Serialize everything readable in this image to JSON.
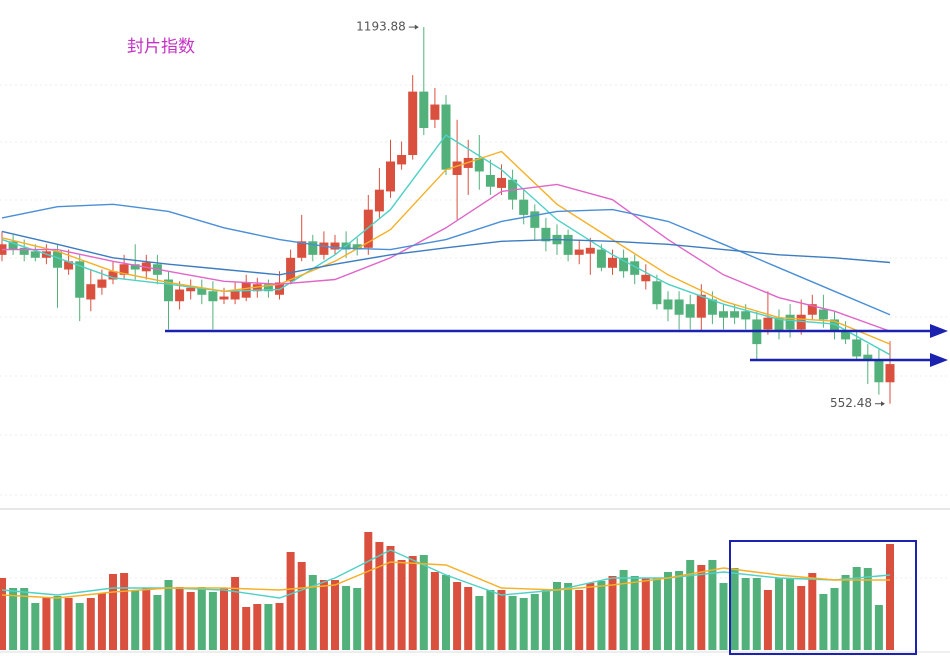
{
  "chart_data": {
    "type": "candlestick",
    "title": "封片指数",
    "open": [
      806,
      829,
      818,
      812,
      801,
      812,
      781,
      795,
      730,
      750,
      764,
      772,
      790,
      778,
      790,
      764,
      727,
      744,
      750,
      744,
      730,
      730,
      733,
      744,
      756,
      738,
      761,
      801,
      829,
      806,
      815,
      827,
      824,
      818,
      880,
      914,
      960,
      976,
      1084,
      1036,
      1062,
      942,
      954,
      971,
      942,
      920,
      934,
      900,
      880,
      852,
      840,
      840,
      806,
      808,
      815,
      784,
      801,
      795,
      761,
      761,
      730,
      730,
      722,
      699,
      730,
      710,
      710,
      710,
      696,
      679,
      699,
      704,
      679,
      704,
      713,
      696,
      676,
      662,
      636,
      628,
      589
    ],
    "close": [
      824,
      815,
      806,
      801,
      812,
      784,
      795,
      733,
      756,
      764,
      778,
      790,
      781,
      793,
      772,
      727,
      747,
      750,
      738,
      727,
      735,
      744,
      759,
      756,
      744,
      759,
      801,
      829,
      806,
      827,
      827,
      815,
      815,
      883,
      917,
      965,
      976,
      1084,
      1022,
      1062,
      951,
      965,
      971,
      948,
      922,
      937,
      900,
      874,
      852,
      829,
      824,
      806,
      815,
      818,
      784,
      801,
      778,
      772,
      772,
      722,
      713,
      704,
      699,
      738,
      704,
      699,
      699,
      696,
      654,
      699,
      676,
      679,
      704,
      722,
      696,
      676,
      662,
      633,
      628,
      589,
      620
    ],
    "low": [
      795,
      806,
      795,
      795,
      790,
      716,
      772,
      693,
      710,
      738,
      756,
      764,
      764,
      764,
      756,
      679,
      713,
      730,
      722,
      679,
      722,
      722,
      727,
      733,
      733,
      730,
      756,
      795,
      795,
      798,
      806,
      801,
      805,
      806,
      869,
      903,
      951,
      968,
      1010,
      1022,
      942,
      866,
      908,
      917,
      908,
      908,
      883,
      858,
      832,
      812,
      806,
      795,
      790,
      772,
      778,
      772,
      767,
      756,
      747,
      713,
      693,
      679,
      679,
      676,
      688,
      679,
      688,
      679,
      628,
      670,
      662,
      665,
      670,
      696,
      682,
      662,
      654,
      625,
      586,
      568,
      552.48
    ],
    "high": [
      846,
      840,
      832,
      824,
      824,
      824,
      815,
      806,
      781,
      781,
      795,
      806,
      824,
      806,
      806,
      778,
      761,
      764,
      764,
      761,
      750,
      759,
      772,
      767,
      764,
      778,
      815,
      874,
      840,
      846,
      840,
      846,
      835,
      908,
      954,
      1002,
      999,
      1112,
      1193.88,
      1090,
      1078,
      1036,
      1002,
      1010,
      968,
      960,
      951,
      917,
      892,
      869,
      858,
      849,
      832,
      835,
      824,
      815,
      815,
      806,
      790,
      772,
      744,
      744,
      738,
      756,
      744,
      722,
      722,
      722,
      710,
      744,
      713,
      722,
      730,
      738,
      738,
      710,
      693,
      679,
      654,
      645,
      659
    ],
    "ylim": [
      380,
      1240
    ],
    "up_color": "#d9503f",
    "down_color": "#52b07a",
    "ma": {
      "x": [
        0,
        5,
        10,
        15,
        20,
        25,
        30,
        35,
        40,
        45,
        50,
        55,
        60,
        65,
        70,
        75,
        80
      ],
      "series": [
        {
          "color": "#4fd1c5",
          "values": [
            832,
            801,
            767,
            756,
            744,
            747,
            806,
            883,
            1010,
            951,
            866,
            806,
            756,
            722,
            696,
            688,
            636
          ]
        },
        {
          "color": "#f5b027",
          "values": [
            835,
            812,
            778,
            759,
            744,
            756,
            795,
            849,
            951,
            982,
            892,
            832,
            772,
            727,
            699,
            693,
            654
          ]
        },
        {
          "color": "#e066c8",
          "values": [
            815,
            815,
            795,
            778,
            761,
            756,
            764,
            801,
            852,
            914,
            926,
            900,
            832,
            772,
            733,
            710,
            676
          ]
        },
        {
          "color": "#4a8fd6",
          "values": [
            869,
            888,
            892,
            880,
            852,
            832,
            818,
            815,
            832,
            863,
            880,
            883,
            863,
            824,
            784,
            744,
            704
          ]
        },
        {
          "color": "#3d7cc0",
          "values": [
            846,
            824,
            801,
            790,
            781,
            772,
            790,
            806,
            818,
            829,
            832,
            829,
            824,
            815,
            806,
            801,
            793
          ]
        }
      ]
    },
    "volume": {
      "values": [
        72,
        62,
        62,
        47,
        52,
        54,
        52,
        47,
        52,
        57,
        76,
        77,
        60,
        62,
        55,
        70,
        63,
        58,
        63,
        58,
        62,
        73,
        43,
        46,
        46,
        47,
        98,
        88,
        75,
        70,
        70,
        64,
        62,
        118,
        108,
        104,
        90,
        94,
        95,
        78,
        75,
        68,
        63,
        54,
        60,
        60,
        54,
        52,
        56,
        60,
        68,
        67,
        60,
        67,
        69,
        74,
        80,
        74,
        72,
        72,
        78,
        79,
        90,
        85,
        90,
        67,
        82,
        72,
        72,
        60,
        72,
        72,
        64,
        77,
        56,
        62,
        75,
        83,
        82,
        45,
        106
      ],
      "ylim": [
        0,
        138
      ],
      "ma": {
        "x": [
          0,
          5,
          10,
          15,
          20,
          25,
          30,
          35,
          40,
          45,
          50,
          55,
          60,
          65,
          70,
          75,
          80
        ],
        "series": [
          {
            "color": "#4fd1c5",
            "values": [
              60,
              55,
              62,
              62,
              60,
              52,
              72,
              100,
              75,
              55,
              60,
              72,
              72,
              78,
              72,
              70,
              75
            ]
          },
          {
            "color": "#f5b027",
            "values": [
              55,
              52,
              58,
              62,
              62,
              60,
              65,
              88,
              85,
              62,
              60,
              65,
              72,
              82,
              75,
              70,
              70
            ]
          }
        ]
      }
    }
  }
}
